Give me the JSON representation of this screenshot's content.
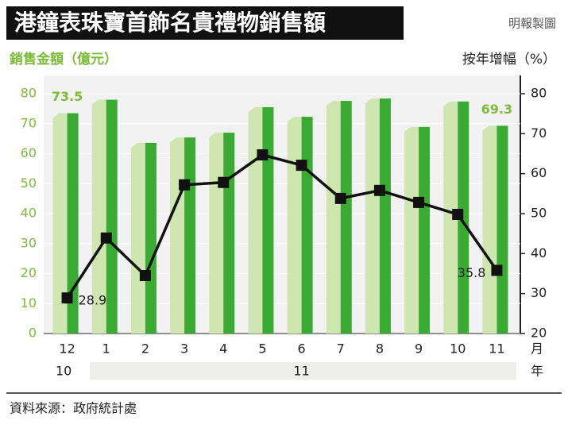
{
  "chart_data": {
    "type": "bar_line",
    "title": "港鐘表珠寶首飾名貴禮物銷售額",
    "credit": "明報製圖",
    "y_label": "銷售金額（億元）",
    "y2_label": "按年增幅（%）",
    "categories": [
      "12",
      "1",
      "2",
      "3",
      "4",
      "5",
      "6",
      "7",
      "8",
      "9",
      "10",
      "11"
    ],
    "x_unit": "月",
    "x_groups": [
      {
        "label": "10",
        "span": 1
      },
      {
        "label": "11",
        "span": 11
      }
    ],
    "x_group_unit": "年",
    "series": [
      {
        "kind": "bar",
        "color": "#3aaa35",
        "shade": "#cfe6b0",
        "values": [
          73.5,
          78,
          63.6,
          65.4,
          67,
          75.5,
          72.3,
          77.6,
          78.4,
          68.9,
          77.4,
          69.3
        ],
        "value_labels": [
          "73.5",
          null,
          null,
          null,
          null,
          null,
          null,
          null,
          null,
          null,
          null,
          "69.3"
        ]
      },
      {
        "kind": "line",
        "axis": "y2",
        "color": "#111111",
        "values": [
          28.9,
          43.9,
          34.5,
          57.2,
          57.8,
          64.7,
          62.1,
          53.8,
          55.8,
          52.8,
          49.8,
          35.8
        ],
        "value_labels": [
          "28.9",
          null,
          null,
          null,
          null,
          null,
          null,
          null,
          null,
          null,
          null,
          "35.8"
        ]
      }
    ],
    "ylim": [
      0,
      80
    ],
    "yticks": [
      0,
      10,
      20,
      30,
      40,
      50,
      60,
      70,
      80
    ],
    "y2lim": [
      20,
      80
    ],
    "y2ticks": [
      20,
      30,
      40,
      50,
      60,
      70,
      80
    ],
    "source": "資料來源：政府統計處"
  }
}
